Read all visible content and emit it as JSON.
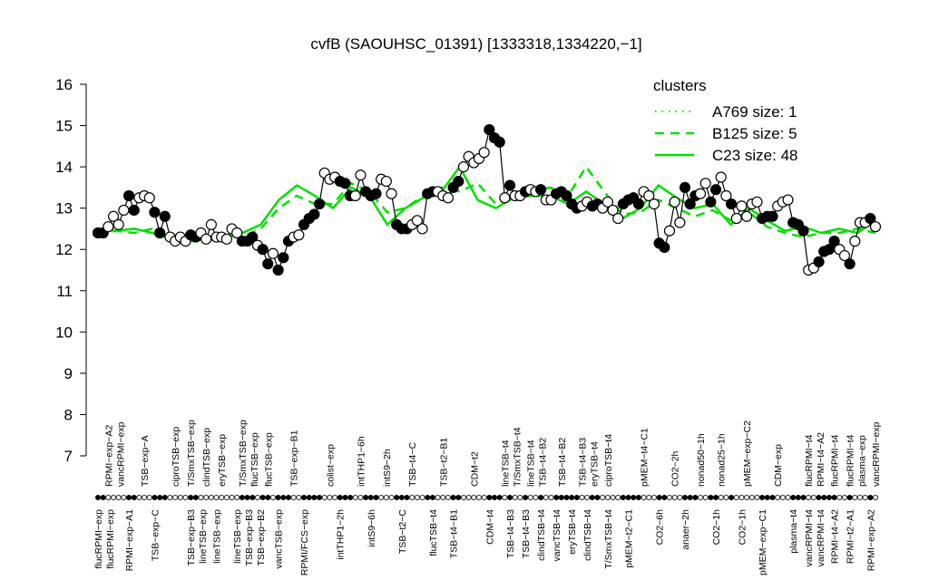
{
  "chart_data": {
    "type": "scatter",
    "title": "cvfB (SAOUHSC_01391) [1333318,1334220,−1]",
    "xlabel": "",
    "ylabel": "",
    "ylim": [
      7,
      16
    ],
    "yticks": [
      7,
      8,
      9,
      10,
      11,
      12,
      13,
      14,
      15,
      16
    ],
    "grid": false,
    "legend": {
      "title": "clusters",
      "placement": "top-right",
      "color": "#00e000",
      "entries": [
        {
          "label": "A769 size: 1",
          "style": "dotted"
        },
        {
          "label": "B125 size: 5",
          "style": "dashed"
        },
        {
          "label": "C23 size: 48",
          "style": "solid"
        }
      ]
    },
    "points": [
      [
        12.4,
        1
      ],
      [
        12.4,
        1
      ],
      [
        12.55,
        0
      ],
      [
        12.8,
        0
      ],
      [
        12.6,
        0
      ],
      [
        12.95,
        0
      ],
      [
        13.3,
        1
      ],
      [
        12.95,
        1
      ],
      [
        13.25,
        0
      ],
      [
        13.3,
        0
      ],
      [
        13.25,
        0
      ],
      [
        12.9,
        1
      ],
      [
        12.4,
        1
      ],
      [
        12.8,
        1
      ],
      [
        12.3,
        0
      ],
      [
        12.2,
        0
      ],
      [
        12.3,
        0
      ],
      [
        12.2,
        0
      ],
      [
        12.35,
        1
      ],
      [
        12.3,
        1
      ],
      [
        12.4,
        0
      ],
      [
        12.25,
        0
      ],
      [
        12.6,
        0
      ],
      [
        12.3,
        0
      ],
      [
        12.3,
        0
      ],
      [
        12.25,
        0
      ],
      [
        12.5,
        0
      ],
      [
        12.4,
        0
      ],
      [
        12.2,
        1
      ],
      [
        12.2,
        1
      ],
      [
        12.3,
        1
      ],
      [
        12.1,
        0
      ],
      [
        12.0,
        1
      ],
      [
        11.65,
        1
      ],
      [
        11.9,
        0
      ],
      [
        11.5,
        1
      ],
      [
        11.8,
        1
      ],
      [
        12.2,
        1
      ],
      [
        12.3,
        0
      ],
      [
        12.35,
        0
      ],
      [
        12.6,
        1
      ],
      [
        12.75,
        1
      ],
      [
        12.85,
        1
      ],
      [
        13.1,
        1
      ],
      [
        13.85,
        0
      ],
      [
        13.7,
        0
      ],
      [
        13.75,
        0
      ],
      [
        13.65,
        1
      ],
      [
        13.6,
        1
      ],
      [
        13.3,
        1
      ],
      [
        13.3,
        0
      ],
      [
        13.8,
        0
      ],
      [
        13.4,
        1
      ],
      [
        13.3,
        1
      ],
      [
        13.35,
        1
      ],
      [
        13.7,
        0
      ],
      [
        13.65,
        0
      ],
      [
        13.35,
        0
      ],
      [
        12.6,
        1
      ],
      [
        12.5,
        1
      ],
      [
        12.5,
        1
      ],
      [
        12.6,
        0
      ],
      [
        12.7,
        0
      ],
      [
        12.5,
        0
      ],
      [
        13.35,
        1
      ],
      [
        13.4,
        1
      ],
      [
        13.4,
        0
      ],
      [
        13.3,
        0
      ],
      [
        13.25,
        0
      ],
      [
        13.5,
        1
      ],
      [
        13.65,
        1
      ],
      [
        14.0,
        0
      ],
      [
        14.25,
        0
      ],
      [
        14.1,
        0
      ],
      [
        14.2,
        0
      ],
      [
        14.35,
        0
      ],
      [
        14.9,
        1
      ],
      [
        14.7,
        1
      ],
      [
        14.6,
        1
      ],
      [
        13.25,
        0
      ],
      [
        13.55,
        1
      ],
      [
        13.3,
        0
      ],
      [
        13.3,
        0
      ],
      [
        13.4,
        1
      ],
      [
        13.45,
        0
      ],
      [
        13.4,
        0
      ],
      [
        13.45,
        1
      ],
      [
        13.2,
        0
      ],
      [
        13.2,
        0
      ],
      [
        13.35,
        1
      ],
      [
        13.4,
        1
      ],
      [
        13.3,
        1
      ],
      [
        13.1,
        1
      ],
      [
        13.0,
        1
      ],
      [
        13.05,
        0
      ],
      [
        13.15,
        0
      ],
      [
        13.05,
        1
      ],
      [
        13.1,
        1
      ],
      [
        13.0,
        0
      ],
      [
        13.15,
        0
      ],
      [
        12.95,
        0
      ],
      [
        12.75,
        0
      ],
      [
        13.1,
        1
      ],
      [
        13.2,
        1
      ],
      [
        13.25,
        1
      ],
      [
        13.1,
        1
      ],
      [
        13.4,
        0
      ],
      [
        13.3,
        0
      ],
      [
        13.1,
        0
      ],
      [
        12.15,
        1
      ],
      [
        12.05,
        1
      ],
      [
        12.45,
        0
      ],
      [
        13.15,
        0
      ],
      [
        12.65,
        0
      ],
      [
        13.5,
        1
      ],
      [
        13.1,
        1
      ],
      [
        13.3,
        1
      ],
      [
        13.35,
        0
      ],
      [
        13.6,
        0
      ],
      [
        13.15,
        1
      ],
      [
        13.45,
        1
      ],
      [
        13.75,
        0
      ],
      [
        13.3,
        0
      ],
      [
        13.1,
        1
      ],
      [
        12.75,
        0
      ],
      [
        13.05,
        0
      ],
      [
        12.8,
        0
      ],
      [
        13.1,
        0
      ],
      [
        13.15,
        0
      ],
      [
        12.75,
        1
      ],
      [
        12.8,
        1
      ],
      [
        12.8,
        1
      ],
      [
        13.05,
        0
      ],
      [
        13.15,
        0
      ],
      [
        13.2,
        0
      ],
      [
        12.65,
        1
      ],
      [
        12.6,
        1
      ],
      [
        12.45,
        1
      ],
      [
        11.5,
        0
      ],
      [
        11.55,
        0
      ],
      [
        11.7,
        1
      ],
      [
        11.95,
        1
      ],
      [
        12.0,
        1
      ],
      [
        12.2,
        1
      ],
      [
        12.0,
        0
      ],
      [
        11.85,
        0
      ],
      [
        11.65,
        1
      ],
      [
        12.2,
        0
      ],
      [
        12.65,
        0
      ],
      [
        12.65,
        0
      ],
      [
        12.75,
        1
      ],
      [
        12.55,
        0
      ]
    ],
    "series": [
      {
        "name": "C23 size: 48",
        "style": "solid",
        "values": [
          12.5,
          12.45,
          12.5,
          12.4,
          12.25,
          12.3,
          12.2,
          12.3,
          12.4,
          12.6,
          13.2,
          13.55,
          13.3,
          13.0,
          13.5,
          13.3,
          12.6,
          13.0,
          13.25,
          13.4,
          14.0,
          13.2,
          13.0,
          13.25,
          13.3,
          13.3,
          13.1,
          13.4,
          13.1,
          12.75,
          13.0,
          13.55,
          13.25,
          13.0,
          13.1,
          12.6,
          13.0,
          12.7,
          12.45,
          12.55,
          12.4,
          12.5,
          12.4,
          12.7
        ]
      },
      {
        "name": "B125 size: 5",
        "style": "dashed",
        "values": [
          12.35,
          12.45,
          12.4,
          12.5,
          12.3,
          12.2,
          12.2,
          12.35,
          12.3,
          12.5,
          13.0,
          13.3,
          13.1,
          13.1,
          13.6,
          13.4,
          12.9,
          13.0,
          13.3,
          13.5,
          13.4,
          13.6,
          13.1,
          13.3,
          13.4,
          13.5,
          13.3,
          14.0,
          13.4,
          12.85,
          12.9,
          13.2,
          13.0,
          12.8,
          12.95,
          12.7,
          12.9,
          12.55,
          12.4,
          12.3,
          12.4,
          12.4,
          12.5,
          12.4
        ]
      }
    ],
    "labels_top": [
      {
        "text": "RPMI−exp−A2",
        "at": 2
      },
      {
        "text": "vancRPMI−exp",
        "at": 4
      },
      {
        "text": "TSB−exp−A",
        "at": 9
      },
      {
        "text": "ciproTSB−exp",
        "at": 15
      },
      {
        "text": "T/SmxTSB−exp",
        "at": 18
      },
      {
        "text": "clindTSB−exp",
        "at": 21
      },
      {
        "text": "eryTSB−exp",
        "at": 24
      },
      {
        "text": "T/SmxTSB−exp",
        "at": 28
      },
      {
        "text": "flucTSB−exp",
        "at": 30
      },
      {
        "text": "flucTSB−exp",
        "at": 33
      },
      {
        "text": "TSB−exp−B1",
        "at": 38
      },
      {
        "text": "colist−exp",
        "at": 45
      },
      {
        "text": "intTHP1−6h",
        "at": 51
      },
      {
        "text": "intS9−2h",
        "at": 56
      },
      {
        "text": "TSB−t4−C",
        "at": 61
      },
      {
        "text": "TSB−t2−B1",
        "at": 67
      },
      {
        "text": "CDM−t2",
        "at": 73
      },
      {
        "text": "lineTSB−t4",
        "at": 79
      },
      {
        "text": "T/SmxTSB−t4",
        "at": 81
      },
      {
        "text": "lineTSB−t4",
        "at": 84
      },
      {
        "text": "TSB−t4−B2",
        "at": 86
      },
      {
        "text": "TSB−t4−B2",
        "at": 90
      },
      {
        "text": "TSB−t4−B3",
        "at": 94
      },
      {
        "text": "eryTSB−t4",
        "at": 96
      },
      {
        "text": "ciproTSB−t4",
        "at": 99
      },
      {
        "text": "pMEM−t4−C1",
        "at": 106
      },
      {
        "text": "CO2−2h",
        "at": 112
      },
      {
        "text": "nonad50−1h",
        "at": 117
      },
      {
        "text": "nonad25−1h",
        "at": 121
      },
      {
        "text": "pMEM−exp−C2",
        "at": 126
      },
      {
        "text": "CDM−exp",
        "at": 132
      },
      {
        "text": "flucRPMI−t4",
        "at": 138
      },
      {
        "text": "RPMI−t4−A2",
        "at": 139
      },
      {
        "text": "flucRPMI−t4",
        "at": 143
      },
      {
        "text": "flucRPMI−t4",
        "at": 146
      },
      {
        "text": "plasma−exp",
        "at": 148
      },
      {
        "text": "vancRPMI−exp",
        "at": 151
      }
    ],
    "labels_bottom": [
      {
        "text": "flucRPMI−exp",
        "at": 0
      },
      {
        "text": "flucRPMI−exp",
        "at": 2
      },
      {
        "text": "RPMI−exp−A1",
        "at": 6
      },
      {
        "text": "TSB−exp−C",
        "at": 11
      },
      {
        "text": "TSB−exp−B3",
        "at": 18
      },
      {
        "text": "lineTSB−exp",
        "at": 20
      },
      {
        "text": "lineTSB−exp",
        "at": 23
      },
      {
        "text": "lineTSB−exp",
        "at": 27
      },
      {
        "text": "TSB−exp−B3",
        "at": 28
      },
      {
        "text": "TSB−exp−B2",
        "at": 31
      },
      {
        "text": "vancTSB−exp",
        "at": 35
      },
      {
        "text": "RPMI/FCS−exp",
        "at": 40
      },
      {
        "text": "intTHP1−2h",
        "at": 47
      },
      {
        "text": "intS9−6h",
        "at": 53
      },
      {
        "text": "TSB−t2−C",
        "at": 59
      },
      {
        "text": "flucTSB−t4",
        "at": 65
      },
      {
        "text": "TSB−t4−B1",
        "at": 69
      },
      {
        "text": "CDM−t4",
        "at": 76
      },
      {
        "text": "TSB−t4−B3",
        "at": 80
      },
      {
        "text": "TSB−t4−B3",
        "at": 83
      },
      {
        "text": "clindTSB−t4",
        "at": 86
      },
      {
        "text": "vancTSB−t4",
        "at": 89
      },
      {
        "text": "eryTSB−t4",
        "at": 92
      },
      {
        "text": "clindTSB−t4",
        "at": 95
      },
      {
        "text": "T/SmxTSB−t4",
        "at": 99
      },
      {
        "text": "pMEM−t2−C1",
        "at": 103
      },
      {
        "text": "CO2−6h",
        "at": 109
      },
      {
        "text": "anaer−2h",
        "at": 114
      },
      {
        "text": "CO2−1h",
        "at": 120
      },
      {
        "text": "CO2−1h",
        "at": 125
      },
      {
        "text": "pMEM−exp−C1",
        "at": 129
      },
      {
        "text": "plasma−t4",
        "at": 135
      },
      {
        "text": "vancRPMI−t4",
        "at": 138
      },
      {
        "text": "vancRPMI−t4",
        "at": 139
      },
      {
        "text": "RPMI−t4−A2",
        "at": 143
      },
      {
        "text": "RPMI−t2−A1",
        "at": 146
      },
      {
        "text": "RPMI−exp−A2",
        "at": 150
      }
    ]
  }
}
